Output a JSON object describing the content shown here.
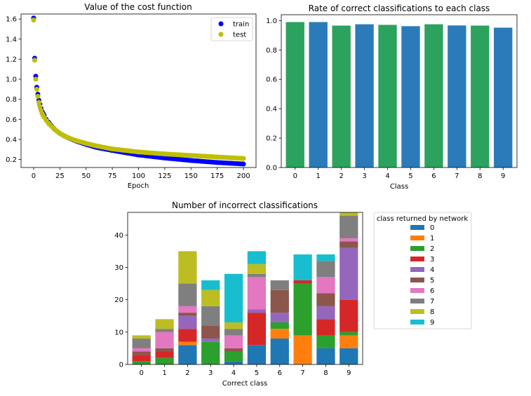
{
  "chart_data": [
    {
      "type": "scatter",
      "title": "Value of the cost function",
      "xlabel": "Epoch",
      "ylabel": "",
      "xlim": [
        -12,
        212
      ],
      "ylim": [
        0.12,
        1.65
      ],
      "xticks": [
        0,
        25,
        50,
        75,
        100,
        125,
        150,
        175,
        200
      ],
      "yticks": [
        0.2,
        0.4,
        0.6,
        0.8,
        1.0,
        1.2,
        1.4,
        1.6
      ],
      "legend": "top-right",
      "series": [
        {
          "name": "train",
          "color": "#0000ff",
          "x": [
            0,
            1,
            2,
            3,
            4,
            5,
            6,
            7,
            8,
            10,
            12,
            15,
            20,
            25,
            30,
            40,
            50,
            60,
            75,
            100,
            125,
            150,
            175,
            200
          ],
          "y": [
            1.61,
            1.21,
            1.03,
            0.92,
            0.85,
            0.79,
            0.75,
            0.71,
            0.68,
            0.64,
            0.6,
            0.56,
            0.5,
            0.46,
            0.43,
            0.385,
            0.35,
            0.32,
            0.29,
            0.245,
            0.215,
            0.19,
            0.17,
            0.155
          ]
        },
        {
          "name": "test",
          "color": "#bfbf00",
          "x": [
            0,
            1,
            2,
            3,
            4,
            5,
            6,
            7,
            8,
            10,
            12,
            15,
            20,
            25,
            30,
            40,
            50,
            60,
            75,
            100,
            125,
            150,
            175,
            200
          ],
          "y": [
            1.59,
            1.19,
            1.0,
            0.9,
            0.83,
            0.77,
            0.73,
            0.69,
            0.66,
            0.62,
            0.59,
            0.55,
            0.5,
            0.46,
            0.43,
            0.39,
            0.36,
            0.335,
            0.305,
            0.275,
            0.255,
            0.24,
            0.225,
            0.21
          ]
        }
      ]
    },
    {
      "type": "bar",
      "title": "Rate of correct classifications to each class",
      "xlabel": "Class",
      "ylabel": "",
      "ylim": [
        0,
        1.04
      ],
      "yticks": [
        0.0,
        0.2,
        0.4,
        0.6,
        0.8,
        1.0
      ],
      "categories": [
        "0",
        "1",
        "2",
        "3",
        "4",
        "5",
        "6",
        "7",
        "8",
        "9"
      ],
      "values": [
        0.99,
        0.99,
        0.966,
        0.975,
        0.971,
        0.962,
        0.975,
        0.967,
        0.966,
        0.952
      ],
      "colors": [
        "#2ca25f",
        "#2b7bba",
        "#2ca25f",
        "#2b7bba",
        "#2ca25f",
        "#2b7bba",
        "#2ca25f",
        "#2b7bba",
        "#2ca25f",
        "#2b7bba"
      ]
    },
    {
      "type": "bar",
      "stacked": true,
      "title": "Number of incorrect classifications",
      "xlabel": "Correct class",
      "ylabel": "",
      "ylim": [
        0,
        47
      ],
      "yticks": [
        0,
        10,
        20,
        30,
        40
      ],
      "categories": [
        "0",
        "1",
        "2",
        "3",
        "4",
        "5",
        "6",
        "7",
        "8",
        "9"
      ],
      "legend_title": "class returned by network",
      "legend": "right",
      "series": [
        {
          "name": "0",
          "color": "#1f77b4",
          "values": [
            0,
            0,
            6,
            0,
            1,
            6,
            8,
            0,
            5,
            5
          ]
        },
        {
          "name": "1",
          "color": "#ff7f0e",
          "values": [
            0,
            0,
            1,
            0,
            0,
            0,
            3,
            9,
            0,
            4
          ]
        },
        {
          "name": "2",
          "color": "#2ca02c",
          "values": [
            1,
            2,
            0,
            7,
            3,
            0,
            2,
            16,
            4,
            1
          ]
        },
        {
          "name": "3",
          "color": "#d62728",
          "values": [
            2,
            2,
            4,
            0,
            0,
            10,
            0,
            1,
            5,
            10
          ]
        },
        {
          "name": "4",
          "color": "#9467bd",
          "values": [
            0,
            0,
            4,
            1,
            0,
            1,
            3,
            0,
            4,
            16
          ]
        },
        {
          "name": "5",
          "color": "#8c564b",
          "values": [
            1,
            1,
            1,
            4,
            1,
            0,
            7,
            0,
            4,
            2
          ]
        },
        {
          "name": "6",
          "color": "#e377c2",
          "values": [
            1,
            5,
            2,
            0,
            4,
            10,
            0,
            0,
            5,
            1
          ]
        },
        {
          "name": "7",
          "color": "#7f7f7f",
          "values": [
            3,
            1,
            7,
            6,
            2,
            1,
            3,
            0,
            5,
            7
          ]
        },
        {
          "name": "8",
          "color": "#bcbd22",
          "values": [
            1,
            3,
            10,
            5,
            2,
            3,
            0,
            0,
            0,
            1
          ]
        },
        {
          "name": "9",
          "color": "#17becf",
          "values": [
            0,
            0,
            0,
            3,
            15,
            4,
            0,
            8,
            2,
            0
          ]
        }
      ]
    }
  ]
}
